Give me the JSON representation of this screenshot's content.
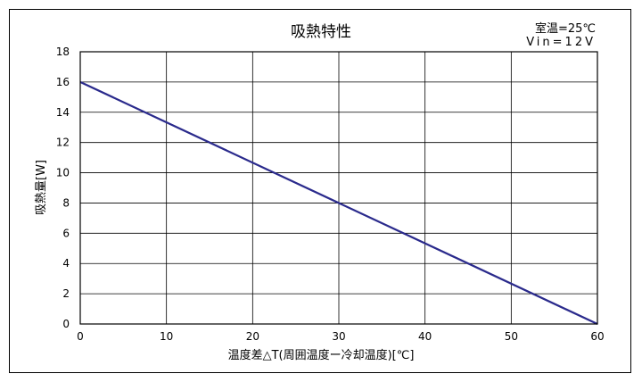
{
  "chart_data": {
    "type": "line",
    "title": "吸熱特性",
    "annotations": [
      "室温=25℃",
      "Vin=12V"
    ],
    "xlabel": "温度差△T(周囲温度ー冷却温度)[℃]",
    "ylabel": "吸熱量[W]",
    "xlim": [
      0,
      60
    ],
    "ylim": [
      0,
      18
    ],
    "xticks": [
      "0",
      "10",
      "20",
      "30",
      "40",
      "50",
      "60"
    ],
    "yticks": [
      "0",
      "2",
      "4",
      "6",
      "8",
      "10",
      "12",
      "14",
      "16",
      "18"
    ],
    "grid": true,
    "series": [
      {
        "x": [
          0,
          60
        ],
        "y": [
          16,
          0
        ],
        "color": "#2a2a8c"
      }
    ]
  }
}
